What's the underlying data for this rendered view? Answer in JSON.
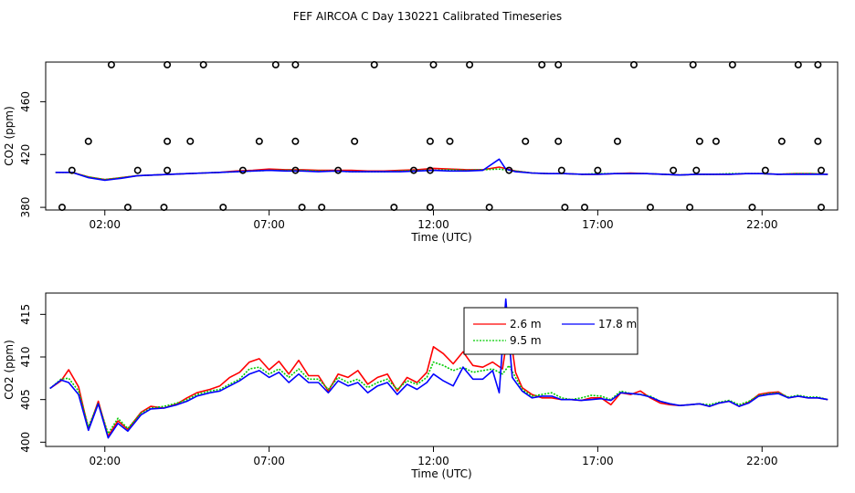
{
  "page_title": "FEF AIRCOA C  Day 130221  Calibrated Timeseries",
  "chart_data": [
    {
      "type": "line",
      "panel": "top",
      "xlabel": "Time (UTC)",
      "ylabel": "CO2 (ppm)",
      "x_ticks": [
        2,
        7,
        12,
        17,
        22
      ],
      "x_tick_labels": [
        "02:00",
        "07:00",
        "12:00",
        "17:00",
        "22:00"
      ],
      "y_ticks": [
        380,
        420,
        460
      ],
      "y_tick_labels": [
        "380",
        "420",
        "460"
      ],
      "xlim": [
        0.2,
        24.3
      ],
      "ylim": [
        378,
        490
      ],
      "grid": false,
      "legend": "none",
      "series": [
        {
          "color": "#ff0000",
          "style": "solid",
          "x": [
            0.5,
            1.0,
            1.5,
            2.0,
            2.5,
            3.0,
            3.5,
            4.0,
            4.5,
            5.0,
            5.5,
            6.0,
            6.5,
            7.0,
            7.5,
            8.0,
            8.5,
            9.0,
            9.5,
            10.0,
            10.5,
            11.0,
            11.5,
            12.0,
            12.5,
            13.0,
            13.5,
            14.0,
            14.5,
            15.0,
            15.5,
            16.0,
            16.5,
            17.0,
            17.5,
            18.0,
            18.5,
            19.0,
            19.5,
            20.0,
            20.5,
            21.0,
            21.5,
            22.0,
            22.5,
            23.0,
            23.5,
            24.0
          ],
          "y": [
            406.5,
            406.5,
            403.0,
            401.0,
            402.5,
            404.0,
            404.5,
            405.0,
            405.5,
            406.0,
            406.5,
            407.5,
            408.0,
            409.0,
            408.5,
            408.5,
            408.0,
            408.0,
            408.0,
            407.5,
            407.5,
            408.0,
            408.5,
            409.5,
            409.0,
            408.5,
            408.5,
            410.5,
            407.5,
            406.0,
            405.5,
            405.5,
            405.0,
            405.0,
            405.5,
            406.0,
            405.5,
            405.0,
            404.5,
            405.0,
            405.0,
            405.0,
            405.5,
            405.5,
            405.0,
            405.5,
            405.5,
            405.0
          ]
        },
        {
          "color": "#00cc00",
          "style": "dotted",
          "x": [
            0.5,
            1.0,
            1.5,
            2.0,
            2.5,
            3.0,
            3.5,
            4.0,
            4.5,
            5.0,
            5.5,
            6.0,
            6.5,
            7.0,
            7.5,
            8.0,
            8.5,
            9.0,
            9.5,
            10.0,
            10.5,
            11.0,
            11.5,
            12.0,
            12.5,
            13.0,
            13.5,
            14.0,
            14.5,
            15.0,
            15.5,
            16.0,
            16.5,
            17.0,
            17.5,
            18.0,
            18.5,
            19.0,
            19.5,
            20.0,
            20.5,
            21.0,
            21.5,
            22.0,
            22.5,
            23.0,
            23.5,
            24.0
          ],
          "y": [
            406.5,
            406.5,
            403.0,
            401.0,
            402.5,
            404.0,
            404.5,
            405.0,
            405.5,
            406.0,
            406.5,
            407.0,
            407.5,
            408.0,
            408.0,
            408.0,
            407.5,
            407.5,
            407.0,
            407.0,
            407.0,
            407.5,
            408.0,
            408.0,
            408.5,
            408.0,
            408.5,
            409.0,
            407.5,
            406.0,
            405.5,
            405.5,
            405.0,
            405.5,
            405.5,
            405.5,
            405.5,
            405.0,
            404.5,
            405.0,
            405.0,
            405.5,
            405.5,
            405.5,
            405.0,
            405.5,
            405.5,
            405.0
          ]
        },
        {
          "color": "#0000ff",
          "style": "solid",
          "x": [
            0.5,
            1.0,
            1.5,
            2.0,
            2.5,
            3.0,
            3.5,
            4.0,
            4.5,
            5.0,
            5.5,
            6.0,
            6.5,
            7.0,
            7.5,
            8.0,
            8.5,
            9.0,
            9.5,
            10.0,
            10.5,
            11.0,
            11.5,
            12.0,
            12.5,
            13.0,
            13.5,
            14.0,
            14.2,
            14.5,
            15.0,
            15.5,
            16.0,
            16.5,
            17.0,
            17.5,
            18.0,
            18.5,
            19.0,
            19.5,
            20.0,
            20.5,
            21.0,
            21.5,
            22.0,
            22.5,
            23.0,
            23.5,
            24.0
          ],
          "y": [
            406.5,
            406.5,
            402.5,
            400.5,
            402.0,
            404.0,
            404.5,
            405.0,
            405.5,
            406.0,
            406.5,
            407.0,
            407.5,
            408.0,
            407.5,
            407.5,
            407.0,
            407.5,
            407.0,
            407.0,
            407.0,
            407.0,
            407.5,
            408.0,
            407.5,
            407.5,
            408.0,
            416.5,
            409.0,
            407.0,
            406.0,
            405.5,
            405.5,
            405.0,
            405.0,
            405.5,
            405.5,
            405.5,
            405.0,
            404.5,
            405.0,
            405.0,
            405.0,
            405.5,
            405.5,
            405.0,
            405.0,
            405.0,
            405.0
          ]
        }
      ],
      "points": {
        "color": "#000000",
        "x": [
          2.2,
          3.9,
          5.0,
          7.2,
          7.8,
          10.2,
          12.0,
          13.1,
          15.3,
          15.8,
          18.1,
          19.9,
          21.1,
          23.1,
          23.7,
          1.5,
          3.9,
          4.6,
          6.7,
          7.8,
          9.6,
          11.9,
          12.5,
          14.8,
          15.8,
          17.6,
          20.1,
          20.6,
          22.6,
          23.7,
          1.0,
          3.0,
          3.9,
          6.2,
          7.8,
          9.1,
          11.4,
          11.9,
          14.3,
          15.9,
          17.0,
          19.3,
          20.0,
          22.1,
          23.8,
          0.7,
          2.7,
          3.8,
          5.6,
          8.0,
          8.6,
          10.8,
          11.9,
          13.7,
          16.0,
          16.6,
          18.6,
          19.8,
          21.7,
          23.8
        ],
        "y": [
          488,
          488,
          488,
          488,
          488,
          488,
          488,
          488,
          488,
          488,
          488,
          488,
          488,
          488,
          488,
          430,
          430,
          430,
          430,
          430,
          430,
          430,
          430,
          430,
          430,
          430,
          430,
          430,
          430,
          430,
          408,
          408,
          408,
          408,
          408,
          408,
          408,
          408,
          408,
          408,
          408,
          408,
          408,
          408,
          408,
          380,
          380,
          380,
          380,
          380,
          380,
          380,
          380,
          380,
          380,
          380,
          380,
          380,
          380,
          380
        ]
      }
    },
    {
      "type": "line",
      "panel": "bottom",
      "xlabel": "Time (UTC)",
      "ylabel": "CO2 (ppm)",
      "x_ticks": [
        2,
        7,
        12,
        17,
        22
      ],
      "x_tick_labels": [
        "02:00",
        "07:00",
        "12:00",
        "17:00",
        "22:00"
      ],
      "y_ticks": [
        400,
        405,
        410,
        415
      ],
      "y_tick_labels": [
        "400",
        "405",
        "410",
        "415"
      ],
      "xlim": [
        0.2,
        24.3
      ],
      "ylim": [
        399.5,
        417.5
      ],
      "grid": false,
      "legend": "inside-top-center",
      "series": [
        {
          "name": "2.6 m",
          "color": "#ff0000",
          "style": "solid",
          "x": [
            0.33,
            0.67,
            0.9,
            1.2,
            1.5,
            1.8,
            2.1,
            2.4,
            2.7,
            3.1,
            3.4,
            3.8,
            4.2,
            4.5,
            4.8,
            5.2,
            5.5,
            5.8,
            6.1,
            6.4,
            6.7,
            7.0,
            7.3,
            7.6,
            7.9,
            8.2,
            8.5,
            8.8,
            9.1,
            9.4,
            9.7,
            10.0,
            10.3,
            10.6,
            10.9,
            11.2,
            11.5,
            11.8,
            12.0,
            12.3,
            12.6,
            12.9,
            13.2,
            13.5,
            13.8,
            14.1,
            14.3,
            14.5,
            14.7,
            15.0,
            15.3,
            15.6,
            15.9,
            16.2,
            16.5,
            16.8,
            17.1,
            17.4,
            17.7,
            18.0,
            18.3,
            18.6,
            18.9,
            19.2,
            19.5,
            19.8,
            20.1,
            20.4,
            20.7,
            21.0,
            21.3,
            21.6,
            21.9,
            22.2,
            22.5,
            22.8,
            23.1,
            23.4,
            23.7,
            24.0
          ],
          "y": [
            406.3,
            407.2,
            408.5,
            406.5,
            401.5,
            404.8,
            400.7,
            402.5,
            401.5,
            403.5,
            404.2,
            404.0,
            404.5,
            405.2,
            405.8,
            406.2,
            406.6,
            407.6,
            408.2,
            409.4,
            409.8,
            408.5,
            409.5,
            408.0,
            409.6,
            407.8,
            407.8,
            406.0,
            408.0,
            407.6,
            408.4,
            406.8,
            407.6,
            408.0,
            406.0,
            407.6,
            407.0,
            408.2,
            411.2,
            410.4,
            409.2,
            410.6,
            409.0,
            408.8,
            409.4,
            408.6,
            413.6,
            408.2,
            406.4,
            405.6,
            405.2,
            405.2,
            405.0,
            405.0,
            404.9,
            405.2,
            405.2,
            404.4,
            405.8,
            405.6,
            406.0,
            405.2,
            404.6,
            404.4,
            404.3,
            404.4,
            404.5,
            404.2,
            404.6,
            404.8,
            404.2,
            404.7,
            405.6,
            405.8,
            405.9,
            405.2,
            405.4,
            405.2,
            405.2,
            405.0
          ]
        },
        {
          "name": "9.5 m",
          "color": "#00cc00",
          "style": "dotted",
          "x": [
            0.33,
            0.67,
            0.9,
            1.2,
            1.5,
            1.8,
            2.1,
            2.4,
            2.7,
            3.1,
            3.4,
            3.8,
            4.2,
            4.5,
            4.8,
            5.2,
            5.5,
            5.8,
            6.1,
            6.4,
            6.7,
            7.0,
            7.3,
            7.6,
            7.9,
            8.2,
            8.5,
            8.8,
            9.1,
            9.4,
            9.7,
            10.0,
            10.3,
            10.6,
            10.9,
            11.2,
            11.5,
            11.8,
            12.0,
            12.3,
            12.6,
            12.9,
            13.2,
            13.5,
            13.8,
            14.1,
            14.3,
            14.5,
            14.7,
            15.0,
            15.3,
            15.6,
            15.9,
            16.2,
            16.5,
            16.8,
            17.1,
            17.4,
            17.7,
            18.0,
            18.3,
            18.6,
            18.9,
            19.2,
            19.5,
            19.8,
            20.1,
            20.4,
            20.7,
            21.0,
            21.3,
            21.6,
            21.9,
            22.2,
            22.5,
            22.8,
            23.1,
            23.4,
            23.7,
            24.0
          ],
          "y": [
            406.3,
            407.4,
            407.5,
            406.0,
            401.8,
            404.6,
            401.0,
            402.8,
            401.6,
            403.4,
            404.0,
            404.2,
            404.6,
            405.0,
            405.6,
            406.0,
            406.2,
            406.8,
            407.4,
            408.6,
            408.8,
            408.0,
            408.6,
            407.6,
            408.6,
            407.4,
            407.4,
            406.2,
            407.6,
            407.0,
            407.4,
            406.4,
            407.0,
            407.4,
            406.2,
            407.2,
            406.8,
            407.6,
            409.4,
            409.0,
            408.4,
            408.8,
            408.2,
            408.4,
            408.6,
            408.0,
            409.0,
            407.6,
            406.2,
            405.4,
            405.6,
            405.8,
            405.2,
            405.0,
            405.2,
            405.5,
            405.4,
            405.0,
            406.0,
            405.7,
            405.6,
            405.4,
            404.8,
            404.5,
            404.3,
            404.4,
            404.5,
            404.4,
            404.7,
            404.9,
            404.4,
            404.8,
            405.5,
            405.7,
            405.8,
            405.3,
            405.5,
            405.3,
            405.3,
            405.0
          ]
        },
        {
          "name": "17.8 m",
          "color": "#0000ff",
          "style": "solid",
          "x": [
            0.33,
            0.67,
            0.9,
            1.2,
            1.5,
            1.8,
            2.1,
            2.4,
            2.7,
            3.1,
            3.4,
            3.8,
            4.2,
            4.5,
            4.8,
            5.2,
            5.5,
            5.8,
            6.1,
            6.4,
            6.7,
            7.0,
            7.3,
            7.6,
            7.9,
            8.2,
            8.5,
            8.8,
            9.1,
            9.4,
            9.7,
            10.0,
            10.3,
            10.6,
            10.9,
            11.2,
            11.5,
            11.8,
            12.0,
            12.3,
            12.6,
            12.9,
            13.2,
            13.5,
            13.8,
            14.0,
            14.2,
            14.4,
            14.7,
            15.0,
            15.3,
            15.6,
            15.9,
            16.2,
            16.5,
            16.8,
            17.1,
            17.4,
            17.7,
            18.0,
            18.3,
            18.6,
            18.9,
            19.2,
            19.5,
            19.8,
            20.1,
            20.4,
            20.7,
            21.0,
            21.3,
            21.6,
            21.9,
            22.2,
            22.5,
            22.8,
            23.1,
            23.4,
            23.7,
            24.0
          ],
          "y": [
            406.3,
            407.3,
            407.0,
            405.6,
            401.4,
            404.5,
            400.5,
            402.2,
            401.3,
            403.2,
            403.9,
            404.0,
            404.4,
            404.8,
            405.4,
            405.8,
            406.0,
            406.6,
            407.2,
            408.0,
            408.4,
            407.6,
            408.2,
            407.0,
            408.0,
            407.0,
            407.0,
            405.8,
            407.2,
            406.6,
            407.0,
            405.8,
            406.6,
            407.0,
            405.6,
            406.8,
            406.2,
            407.0,
            408.0,
            407.2,
            406.6,
            408.8,
            407.4,
            407.4,
            408.4,
            405.8,
            416.8,
            407.6,
            406.0,
            405.2,
            405.4,
            405.4,
            405.0,
            405.0,
            404.9,
            405.0,
            405.1,
            404.9,
            405.8,
            405.7,
            405.6,
            405.3,
            404.8,
            404.5,
            404.3,
            404.4,
            404.5,
            404.2,
            404.6,
            404.8,
            404.2,
            404.6,
            405.4,
            405.6,
            405.7,
            405.2,
            405.4,
            405.2,
            405.2,
            405.0
          ]
        }
      ]
    }
  ]
}
